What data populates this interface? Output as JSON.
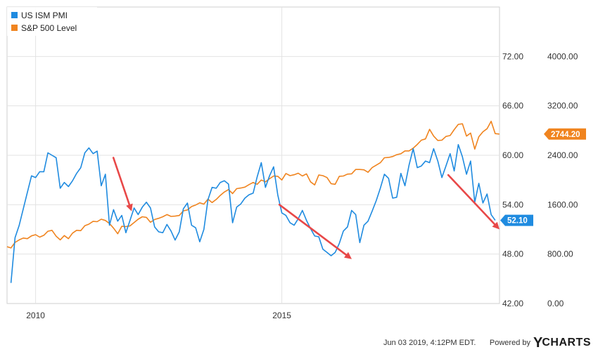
{
  "chart_data": {
    "type": "line",
    "title": "",
    "legend_position": "top-left",
    "grid": true,
    "x_ticks": [
      "2010",
      "2015"
    ],
    "x_range": [
      2009.42,
      2019.42
    ],
    "series": [
      {
        "name": "US ISM PMI",
        "color": "#1f8be0",
        "axis": "left",
        "last_value_label": "52.10",
        "x": [
          2009.5,
          2009.583,
          2009.667,
          2009.75,
          2009.833,
          2009.917,
          2010,
          2010.083,
          2010.167,
          2010.25,
          2010.333,
          2010.417,
          2010.5,
          2010.583,
          2010.667,
          2010.75,
          2010.833,
          2010.917,
          2011,
          2011.083,
          2011.167,
          2011.25,
          2011.333,
          2011.417,
          2011.5,
          2011.583,
          2011.667,
          2011.75,
          2011.833,
          2011.917,
          2012,
          2012.083,
          2012.167,
          2012.25,
          2012.333,
          2012.417,
          2012.5,
          2012.583,
          2012.667,
          2012.75,
          2012.833,
          2012.917,
          2013,
          2013.083,
          2013.167,
          2013.25,
          2013.333,
          2013.417,
          2013.5,
          2013.583,
          2013.667,
          2013.75,
          2013.833,
          2013.917,
          2014,
          2014.083,
          2014.167,
          2014.25,
          2014.333,
          2014.417,
          2014.5,
          2014.583,
          2014.667,
          2014.75,
          2014.833,
          2014.917,
          2015,
          2015.083,
          2015.167,
          2015.25,
          2015.333,
          2015.417,
          2015.5,
          2015.583,
          2015.667,
          2015.75,
          2015.833,
          2015.917,
          2016,
          2016.083,
          2016.167,
          2016.25,
          2016.333,
          2016.417,
          2016.5,
          2016.583,
          2016.667,
          2016.75,
          2016.833,
          2016.917,
          2017,
          2017.083,
          2017.167,
          2017.25,
          2017.333,
          2017.417,
          2017.5,
          2017.583,
          2017.667,
          2017.75,
          2017.833,
          2017.917,
          2018,
          2018.083,
          2018.167,
          2018.25,
          2018.333,
          2018.417,
          2018.5,
          2018.583,
          2018.667,
          2018.75,
          2018.833,
          2018.917,
          2019,
          2019.083,
          2019.167,
          2019.25,
          2019.333
        ],
        "values": [
          44.5,
          50,
          51.5,
          53.5,
          55.5,
          57.5,
          57.3,
          58,
          58,
          60.3,
          60,
          59.7,
          56,
          56.7,
          56.2,
          56.9,
          57.8,
          58.5,
          60.3,
          60.9,
          60.2,
          60.5,
          56.3,
          57.7,
          51.5,
          53.4,
          52,
          52.7,
          50.6,
          52.1,
          53.6,
          52.8,
          53.7,
          54.3,
          53.6,
          51.3,
          50.7,
          50.6,
          51.6,
          50.8,
          49.7,
          50.7,
          53.5,
          54.2,
          51.5,
          51.2,
          49.5,
          51,
          54.6,
          56.1,
          56,
          56.7,
          56.9,
          56.5,
          51.8,
          53.7,
          54.1,
          54.8,
          55.2,
          55.4,
          57.4,
          59.1,
          56.1,
          57.5,
          58.6,
          55.2,
          53,
          52.7,
          51.8,
          51.5,
          52.3,
          53.3,
          52.1,
          51.1,
          50.2,
          50.1,
          48.6,
          48.2,
          47.8,
          48.2,
          49.3,
          50.8,
          51.3,
          53.3,
          52.8,
          49.4,
          51.5,
          52,
          53.2,
          54.5,
          56,
          57.7,
          57.2,
          54.8,
          54.9,
          57.8,
          56.3,
          58.8,
          60.8,
          58.5,
          58.7,
          59.3,
          59.1,
          60.8,
          59.3,
          57.3,
          58.7,
          60.2,
          58.1,
          61.3,
          59.8,
          57.7,
          59.3,
          54.3,
          56.6,
          54.2,
          55.3,
          52.8,
          52.1
        ]
      },
      {
        "name": "S&P 500 Level",
        "color": "#f0841f",
        "axis": "right",
        "last_value_label": "2744.20",
        "x": [
          2009.42,
          2009.5,
          2009.583,
          2009.667,
          2009.75,
          2009.833,
          2009.917,
          2010,
          2010.083,
          2010.167,
          2010.25,
          2010.333,
          2010.417,
          2010.5,
          2010.583,
          2010.667,
          2010.75,
          2010.833,
          2010.917,
          2011,
          2011.083,
          2011.167,
          2011.25,
          2011.333,
          2011.417,
          2011.5,
          2011.583,
          2011.667,
          2011.75,
          2011.833,
          2011.917,
          2012,
          2012.083,
          2012.167,
          2012.25,
          2012.333,
          2012.417,
          2012.5,
          2012.583,
          2012.667,
          2012.75,
          2012.833,
          2012.917,
          2013,
          2013.083,
          2013.167,
          2013.25,
          2013.333,
          2013.417,
          2013.5,
          2013.583,
          2013.667,
          2013.75,
          2013.833,
          2013.917,
          2014,
          2014.083,
          2014.167,
          2014.25,
          2014.333,
          2014.417,
          2014.5,
          2014.583,
          2014.667,
          2014.75,
          2014.833,
          2014.917,
          2015,
          2015.083,
          2015.167,
          2015.25,
          2015.333,
          2015.417,
          2015.5,
          2015.583,
          2015.667,
          2015.75,
          2015.833,
          2015.917,
          2016,
          2016.083,
          2016.167,
          2016.25,
          2016.333,
          2016.417,
          2016.5,
          2016.583,
          2016.667,
          2016.75,
          2016.833,
          2016.917,
          2017,
          2017.083,
          2017.167,
          2017.25,
          2017.333,
          2017.417,
          2017.5,
          2017.583,
          2017.667,
          2017.75,
          2017.833,
          2017.917,
          2018,
          2018.083,
          2018.167,
          2018.25,
          2018.333,
          2018.417,
          2018.5,
          2018.583,
          2018.667,
          2018.75,
          2018.833,
          2018.917,
          2019,
          2019.083,
          2019.167,
          2019.25,
          2019.333,
          2019.417
        ],
        "values": [
          920,
          900,
          990,
          1030,
          1060,
          1050,
          1095,
          1115,
          1075,
          1105,
          1170,
          1185,
          1090,
          1030,
          1100,
          1050,
          1140,
          1185,
          1180,
          1260,
          1285,
          1330,
          1325,
          1365,
          1345,
          1295,
          1220,
          1130,
          1250,
          1245,
          1257,
          1310,
          1365,
          1405,
          1395,
          1315,
          1360,
          1380,
          1405,
          1440,
          1410,
          1415,
          1425,
          1500,
          1515,
          1570,
          1595,
          1630,
          1610,
          1690,
          1635,
          1685,
          1750,
          1805,
          1845,
          1780,
          1860,
          1870,
          1885,
          1925,
          1960,
          1930,
          2000,
          1970,
          2020,
          2065,
          2060,
          2000,
          2105,
          2070,
          2085,
          2110,
          2065,
          2100,
          1970,
          1920,
          2080,
          2070,
          2040,
          1940,
          1930,
          2060,
          2065,
          2095,
          2100,
          2170,
          2170,
          2165,
          2125,
          2200,
          2240,
          2280,
          2360,
          2365,
          2380,
          2410,
          2425,
          2470,
          2470,
          2515,
          2575,
          2645,
          2665,
          2820,
          2710,
          2640,
          2645,
          2705,
          2720,
          2815,
          2900,
          2910,
          2710,
          2760,
          2500,
          2700,
          2780,
          2830,
          2950,
          2750,
          2744
        ]
      }
    ],
    "left_axis": {
      "ticks": [
        "42.00",
        "48.00",
        "54.00",
        "60.00",
        "66.00",
        "72.00"
      ],
      "range": [
        42,
        78
      ]
    },
    "right_axis": {
      "ticks": [
        "0.00",
        "800.00",
        "1600.00",
        "2400.00",
        "3200.00",
        "4000.00"
      ],
      "range": [
        0,
        4800
      ]
    },
    "annotations": [
      {
        "type": "arrow",
        "color": "#e84848",
        "from": [
          2011.58,
          59.7
        ],
        "to": [
          2011.95,
          53.2
        ]
      },
      {
        "type": "arrow",
        "color": "#e84848",
        "from": [
          2014.95,
          54.0
        ],
        "to": [
          2016.42,
          47.4
        ]
      },
      {
        "type": "arrow",
        "color": "#e84848",
        "from": [
          2018.38,
          57.6
        ],
        "to": [
          2019.42,
          51.0
        ]
      }
    ]
  },
  "footer": {
    "timestamp": "Jun 03 2019, 4:12PM EDT.",
    "powered_by": "Powered by",
    "brand_y": "Y",
    "brand_rest": "CHARTS"
  }
}
